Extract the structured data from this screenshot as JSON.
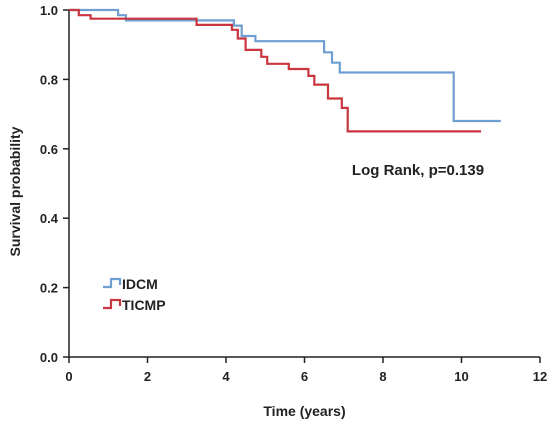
{
  "chart_data": {
    "type": "line",
    "subtype": "kaplan-meier-step",
    "title": "",
    "xlabel": "Time (years)",
    "ylabel": "Survival probability",
    "xlim": [
      0,
      12
    ],
    "ylim": [
      0,
      1.0
    ],
    "xticks": [
      0,
      2,
      4,
      6,
      8,
      10,
      12
    ],
    "yticks": [
      0.0,
      0.2,
      0.4,
      0.6,
      0.8,
      1.0
    ],
    "xtick_labels": [
      "0",
      "2",
      "4",
      "6",
      "8",
      "10",
      "12"
    ],
    "ytick_labels": [
      "0.0",
      "0.2",
      "0.4",
      "0.6",
      "0.8",
      "1.0"
    ],
    "grid": false,
    "legend_position": "bottom-left",
    "annotation": "Log Rank, p=0.139",
    "series": [
      {
        "name": "IDCM",
        "color": "#6f9fd0",
        "points": [
          [
            0,
            1.0
          ],
          [
            1.25,
            1.0
          ],
          [
            1.25,
            0.985
          ],
          [
            1.45,
            0.985
          ],
          [
            1.45,
            0.97
          ],
          [
            4.2,
            0.97
          ],
          [
            4.2,
            0.955
          ],
          [
            4.4,
            0.955
          ],
          [
            4.4,
            0.925
          ],
          [
            4.75,
            0.925
          ],
          [
            4.75,
            0.91
          ],
          [
            6.5,
            0.91
          ],
          [
            6.5,
            0.878
          ],
          [
            6.7,
            0.878
          ],
          [
            6.7,
            0.848
          ],
          [
            6.9,
            0.848
          ],
          [
            6.9,
            0.82
          ],
          [
            9.8,
            0.82
          ],
          [
            9.8,
            0.68
          ],
          [
            11.0,
            0.68
          ]
        ]
      },
      {
        "name": "TICMP",
        "color": "#c9363f",
        "points": [
          [
            0,
            1.0
          ],
          [
            0.25,
            1.0
          ],
          [
            0.25,
            0.985
          ],
          [
            0.55,
            0.985
          ],
          [
            0.55,
            0.975
          ],
          [
            3.25,
            0.975
          ],
          [
            3.25,
            0.957
          ],
          [
            4.15,
            0.957
          ],
          [
            4.15,
            0.943
          ],
          [
            4.3,
            0.943
          ],
          [
            4.3,
            0.918
          ],
          [
            4.5,
            0.918
          ],
          [
            4.5,
            0.885
          ],
          [
            4.9,
            0.885
          ],
          [
            4.9,
            0.865
          ],
          [
            5.05,
            0.865
          ],
          [
            5.05,
            0.845
          ],
          [
            5.6,
            0.845
          ],
          [
            5.6,
            0.83
          ],
          [
            6.1,
            0.83
          ],
          [
            6.1,
            0.81
          ],
          [
            6.25,
            0.81
          ],
          [
            6.25,
            0.785
          ],
          [
            6.6,
            0.785
          ],
          [
            6.6,
            0.745
          ],
          [
            6.95,
            0.745
          ],
          [
            6.95,
            0.718
          ],
          [
            7.1,
            0.718
          ],
          [
            7.1,
            0.65
          ],
          [
            10.5,
            0.65
          ]
        ]
      }
    ]
  }
}
